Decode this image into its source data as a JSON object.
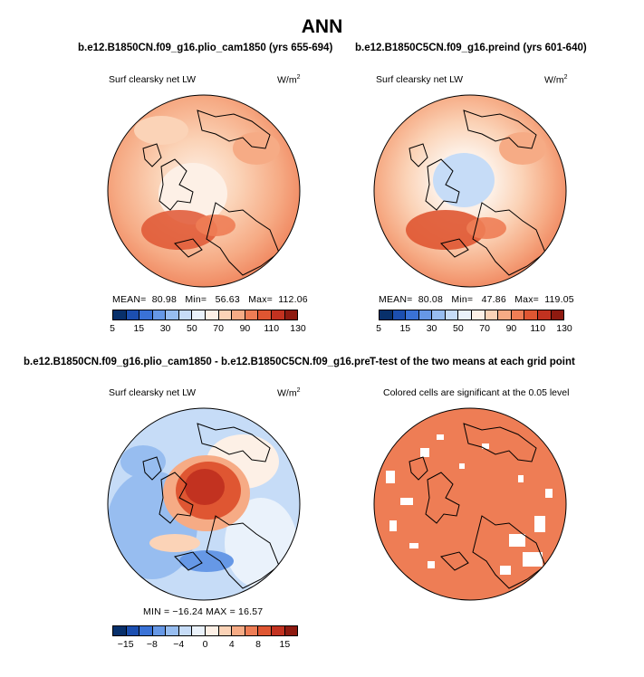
{
  "main_title": "ANN",
  "panels": [
    {
      "title": "b.e12.B1850CN.f09_g16.plio_cam1850 (yrs 655-694)",
      "variable": "Surf clearsky net LW",
      "units": "W/m",
      "units_exp": "2",
      "stats": {
        "mean_label": "MEAN=",
        "mean": "80.98",
        "min_label": "Min=",
        "min": "56.63",
        "max_label": "Max=",
        "max": "112.06"
      },
      "colorbar": "abs"
    },
    {
      "title": "b.e12.B1850C5CN.f09_g16.preind (yrs 601-640)",
      "variable": "Surf clearsky net LW",
      "units": "W/m",
      "units_exp": "2",
      "stats": {
        "mean_label": "MEAN=",
        "mean": "80.08",
        "min_label": "Min=",
        "min": "47.86",
        "max_label": "Max=",
        "max": "119.05"
      },
      "colorbar": "abs"
    },
    {
      "title": "b.e12.B1850CN.f09_g16.plio_cam1850 - b.e12.B1850C5CN.f09_g16.preind",
      "variable": "Surf clearsky net LW",
      "units": "W/m",
      "units_exp": "2",
      "stats_line": "MIN = −16.24  MAX =   16.57",
      "colorbar": "diff"
    },
    {
      "title": "T-test of the two means at each grid point",
      "variable": "Colored cells are significant at the 0.05 level"
    }
  ],
  "colorbars": {
    "abs": {
      "labels": [
        "5",
        "15",
        "30",
        "50",
        "70",
        "90",
        "110",
        "130"
      ],
      "colors": [
        "#08306b",
        "#1c4fb0",
        "#3a72d6",
        "#6698e6",
        "#97bdf0",
        "#c6dcf7",
        "#eaf2fb",
        "#fdf0e6",
        "#fbd3b7",
        "#f6ab85",
        "#ee7d55",
        "#df5632",
        "#c23220",
        "#8e1a10"
      ]
    },
    "diff": {
      "labels": [
        "−15",
        "−8",
        "−4",
        "0",
        "4",
        "8",
        "15"
      ],
      "colors": [
        "#08306b",
        "#1c4fb0",
        "#3a72d6",
        "#6698e6",
        "#97bdf0",
        "#c6dcf7",
        "#eaf2fb",
        "#fdf0e6",
        "#fbd3b7",
        "#f6ab85",
        "#ee7d55",
        "#df5632",
        "#c23220",
        "#8e1a10"
      ]
    }
  },
  "chart_data": [
    {
      "type": "heatmap",
      "title": "b.e12.B1850CN.f09_g16.plio_cam1850 (yrs 655-694)",
      "subtitle": "Surf clearsky net LW",
      "units": "W/m2",
      "projection": "north polar stereographic",
      "mean": 80.98,
      "min": 56.63,
      "max": 112.06,
      "levels": [
        5,
        15,
        30,
        50,
        70,
        90,
        110,
        130
      ]
    },
    {
      "type": "heatmap",
      "title": "b.e12.B1850C5CN.f09_g16.preind (yrs 601-640)",
      "subtitle": "Surf clearsky net LW",
      "units": "W/m2",
      "projection": "north polar stereographic",
      "mean": 80.08,
      "min": 47.86,
      "max": 119.05,
      "levels": [
        5,
        15,
        30,
        50,
        70,
        90,
        110,
        130
      ]
    },
    {
      "type": "heatmap",
      "title": "b.e12.B1850CN.f09_g16.plio_cam1850 - b.e12.B1850C5CN.f09_g16.preind",
      "subtitle": "Surf clearsky net LW",
      "units": "W/m2",
      "projection": "north polar stereographic",
      "min": -16.24,
      "max": 16.57,
      "levels": [
        -15,
        -8,
        -4,
        0,
        4,
        8,
        15
      ]
    },
    {
      "type": "heatmap",
      "title": "T-test of the two means at each grid point",
      "subtitle": "Colored cells are significant at the 0.05 level",
      "projection": "north polar stereographic"
    }
  ]
}
